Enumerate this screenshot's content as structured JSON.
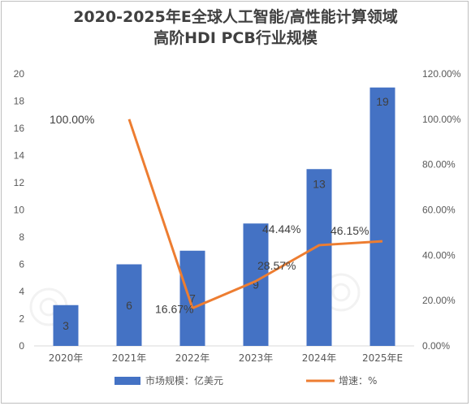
{
  "chart_data": {
    "type": "bar+line",
    "title_line1": "2020-2025年E全球人工智能/高性能计算领域",
    "title_line2": "高阶HDI PCB行业规模",
    "categories": [
      "2020年",
      "2021年",
      "2022年",
      "2023年",
      "2024年",
      "2025年E"
    ],
    "series": [
      {
        "name": "市场规模：亿美元",
        "type": "bar",
        "axis": "left",
        "color": "#4472c4",
        "values": [
          3,
          6,
          7,
          9,
          13,
          19
        ],
        "labels": [
          "3",
          "6",
          "7",
          "9",
          "13",
          "19"
        ]
      },
      {
        "name": "增速：%",
        "type": "line",
        "axis": "right",
        "color": "#ed7d31",
        "values": [
          null,
          100.0,
          16.67,
          28.57,
          44.44,
          46.15
        ],
        "labels": [
          "",
          "100.00%",
          "16.67%",
          "28.57%",
          "44.44%",
          "46.15%"
        ]
      }
    ],
    "y_left": {
      "min": 0,
      "max": 20,
      "step": 2,
      "ticks": [
        "0",
        "2",
        "4",
        "6",
        "8",
        "10",
        "12",
        "14",
        "16",
        "18",
        "20"
      ]
    },
    "y_right": {
      "min": 0,
      "max": 120,
      "step": 20,
      "ticks": [
        "0.00%",
        "20.00%",
        "40.00%",
        "60.00%",
        "80.00%",
        "100.00%",
        "120.00%"
      ]
    },
    "grid": false,
    "legend_position": "bottom"
  }
}
